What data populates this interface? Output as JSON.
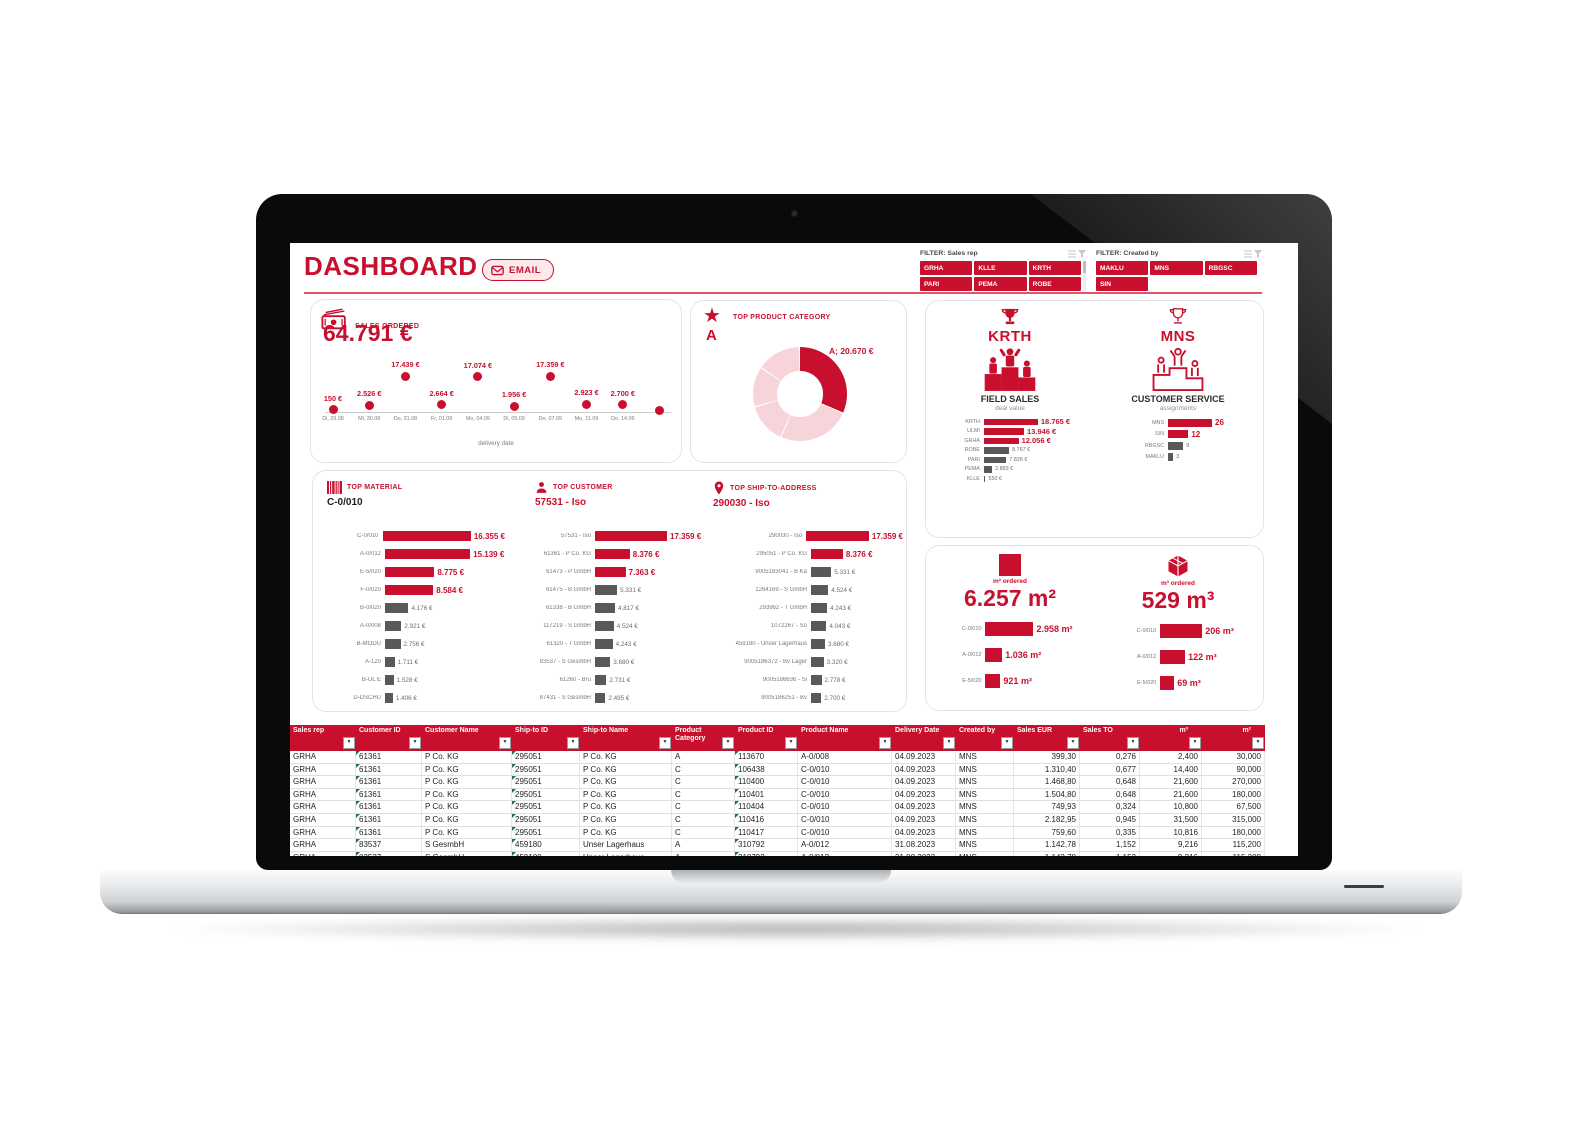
{
  "header": {
    "title": "DASHBOARD",
    "email_button": "EMAIL"
  },
  "filters": [
    {
      "label": "FILTER: Sales rep",
      "buttons": [
        "GRHA",
        "KLLE",
        "KRTH",
        "PARI",
        "PEMA",
        "ROBE"
      ]
    },
    {
      "label": "FILTER: Created by",
      "buttons": [
        "MAKLU",
        "MNS",
        "RBGSC",
        "SIN"
      ]
    }
  ],
  "colors": {
    "accent": "#C8102E",
    "pink_segment": "#F7D4DA",
    "gray_bar": "#595959",
    "header_rule": "#DE5468"
  },
  "kpis": {
    "sales_ordered": {
      "label": "SALES ORDERED",
      "value": "64.791 €"
    },
    "top_product_category": {
      "label": "TOP PRODUCT CATEGORY",
      "value": "A"
    },
    "field_sales": {
      "winner": "KRTH",
      "title": "FIELD SALES",
      "subtitle": "deal value"
    },
    "customer_service": {
      "winner": "MNS",
      "title": "CUSTOMER SERVICE",
      "subtitle": "assignments"
    },
    "top_material": {
      "label": "TOP MATERIAL",
      "value": "C-0/010"
    },
    "top_customer": {
      "label": "TOP CUSTOMER",
      "value": "57531 - Iso"
    },
    "top_shipto": {
      "label": "TOP SHIP-TO-ADDRESS",
      "value": "290030 - Iso"
    },
    "m2": {
      "label": "m² ordered",
      "value": "6.257 m²"
    },
    "m3": {
      "label": "m³ ordered",
      "value": "529 m³"
    }
  },
  "chart_data": [
    {
      "id": "sales_by_delivery_date",
      "type": "scatter",
      "xlabel": "delivery date",
      "categories": [
        "Di, 29.08",
        "Mi, 30.08",
        "Do, 31.08",
        "Fr, 01.09",
        "Mo, 04.09",
        "Di, 05.09",
        "Do, 07.09",
        "Mo, 11.09",
        "Do, 14.09",
        ""
      ],
      "values": [
        150,
        2526,
        17439,
        2664,
        17074,
        1956,
        17359,
        2923,
        2700,
        0
      ],
      "labels": [
        "150 €",
        "2.526 €",
        "17.439 €",
        "2.664 €",
        "17.074 €",
        "1.956 €",
        "17.359 €",
        "2.923 €",
        "2.700 €",
        ""
      ],
      "ylim": [
        0,
        18000
      ]
    },
    {
      "id": "top_product_category_donut",
      "type": "pie",
      "label": "A; 20.670 €",
      "total": 64791,
      "segments": [
        {
          "name": "A",
          "value": 20670,
          "highlight": true
        },
        {
          "name": "other-1",
          "value": 16208
        },
        {
          "name": "other-2",
          "value": 9003
        },
        {
          "name": "other-3",
          "value": 9003
        },
        {
          "name": "other-4",
          "value": 9907
        }
      ]
    },
    {
      "id": "field_sales_deal_value",
      "type": "bar",
      "red_count": 3,
      "categories": [
        "KRTH",
        "ULMI",
        "GRHA",
        "ROBE",
        "PARI",
        "PEMA",
        "KLLE"
      ],
      "values": [
        18765,
        13946,
        12056,
        8767,
        7826,
        2883,
        550
      ],
      "labels": [
        "18.765 €",
        "13.946 €",
        "12.056 €",
        "8.767 €",
        "7.826 €",
        "2.883 €",
        "550 €"
      ]
    },
    {
      "id": "customer_service_assignments",
      "type": "bar",
      "red_count": 2,
      "categories": [
        "MNS",
        "SIN",
        "RBGSC",
        "MAKLU"
      ],
      "values": [
        26,
        12,
        9,
        3
      ],
      "labels": [
        "26",
        "12",
        "9",
        "3"
      ]
    },
    {
      "id": "top_material_sales",
      "type": "bar",
      "red_count": 4,
      "categories": [
        "C-0/010",
        "A-0/012",
        "E-5/020",
        "F-0/020",
        "B-0/020",
        "A-0/008",
        "B-MODU",
        "A-120",
        "B-UL E",
        "D-DSCHU"
      ],
      "values": [
        16355,
        15139,
        8775,
        8584,
        4176,
        2921,
        2756,
        1711,
        1528,
        1406
      ],
      "labels": [
        "16.355 €",
        "15.139 €",
        "8.775 €",
        "8.584 €",
        "4.176 €",
        "2.921 €",
        "2.756 €",
        "1.711 €",
        "1.528 €",
        "1.406 €"
      ]
    },
    {
      "id": "top_customer_sales",
      "type": "bar",
      "red_count": 3,
      "categories": [
        "57531 - Iso",
        "61361 - P Co. KG",
        "61473 - P GmbH",
        "61475 - B GmbH",
        "61338 - B GmbH",
        "117219 - S GmbH",
        "61320 - T GmbH",
        "83537 - S GesmbH",
        "61260 - Bru",
        "87431 - S GesmbH"
      ],
      "values": [
        17359,
        8376,
        7363,
        5331,
        4817,
        4524,
        4243,
        3680,
        2731,
        2495
      ],
      "labels": [
        "17.359 €",
        "8.376 €",
        "7.363 €",
        "5.331 €",
        "4.817 €",
        "4.524 €",
        "4.243 €",
        "3.680 €",
        "2.731 €",
        "2.495 €"
      ]
    },
    {
      "id": "top_shipto_sales",
      "type": "bar",
      "red_count": 2,
      "categories": [
        "290030 - Iso",
        "295051 - P Co. KG",
        "9005183041 - B Ka",
        "1264169 - S GmbH",
        "293962 - T GmbH",
        "1072267 - So",
        "459180 - Unser Lagerhaus",
        "9005186372 - Bv Lager",
        "9005186636 - Si",
        "9005186251 - Bv"
      ],
      "values": [
        17359,
        8376,
        5331,
        4524,
        4243,
        4043,
        3680,
        3320,
        2778,
        2700
      ],
      "labels": [
        "17.359 €",
        "8.376 €",
        "5.331 €",
        "4.524 €",
        "4.243 €",
        "4.043 €",
        "3.680 €",
        "3.320 €",
        "2.778 €",
        "2.700 €"
      ]
    },
    {
      "id": "m2_by_material",
      "type": "bar",
      "red_count": 3,
      "categories": [
        "C-0/010",
        "A-0/012",
        "E-5/020"
      ],
      "values": [
        2958,
        1036,
        921
      ],
      "labels": [
        "2.958 m²",
        "1.036 m²",
        "921 m²"
      ]
    },
    {
      "id": "m3_by_material",
      "type": "bar",
      "red_count": 3,
      "categories": [
        "C-0/010",
        "A-0/012",
        "E-5/020"
      ],
      "values": [
        206,
        122,
        69
      ],
      "labels": [
        "206 m³",
        "122 m³",
        "69 m³"
      ]
    }
  ],
  "table": {
    "columns": [
      "Sales rep",
      "Customer ID",
      "Customer Name",
      "Ship-to ID",
      "Ship-to Name",
      "Product Category",
      "Product ID",
      "Product Name",
      "Delivery Date",
      "Created by",
      "Sales EUR",
      "Sales TO",
      "m³",
      "m²"
    ],
    "rows": [
      [
        "GRHA",
        "61361",
        "P Co. KG",
        "295051",
        "P Co. KG",
        "A",
        "113670",
        "A-0/008",
        "04.09.2023",
        "MNS",
        "399,30",
        "0,276",
        "2,400",
        "30,000"
      ],
      [
        "GRHA",
        "61361",
        "P Co. KG",
        "295051",
        "P Co. KG",
        "C",
        "106438",
        "C-0/010",
        "04.09.2023",
        "MNS",
        "1.310,40",
        "0,677",
        "14,400",
        "90,000"
      ],
      [
        "GRHA",
        "61361",
        "P Co. KG",
        "295051",
        "P Co. KG",
        "C",
        "110400",
        "C-0/010",
        "04.09.2023",
        "MNS",
        "1.468,80",
        "0,648",
        "21,600",
        "270,000"
      ],
      [
        "GRHA",
        "61361",
        "P Co. KG",
        "295051",
        "P Co. KG",
        "C",
        "110401",
        "C-0/010",
        "04.09.2023",
        "MNS",
        "1.504,80",
        "0,648",
        "21,600",
        "180,000"
      ],
      [
        "GRHA",
        "61361",
        "P Co. KG",
        "295051",
        "P Co. KG",
        "C",
        "110404",
        "C-0/010",
        "04.09.2023",
        "MNS",
        "749,93",
        "0,324",
        "10,800",
        "67,500"
      ],
      [
        "GRHA",
        "61361",
        "P Co. KG",
        "295051",
        "P Co. KG",
        "C",
        "110416",
        "C-0/010",
        "04.09.2023",
        "MNS",
        "2.182,95",
        "0,945",
        "31,500",
        "315,000"
      ],
      [
        "GRHA",
        "61361",
        "P Co. KG",
        "295051",
        "P Co. KG",
        "C",
        "110417",
        "C-0/010",
        "04.09.2023",
        "MNS",
        "759,60",
        "0,335",
        "10,816",
        "180,000"
      ],
      [
        "GRHA",
        "83537",
        "S GesmbH",
        "459180",
        "Unser Lagerhaus",
        "A",
        "310792",
        "A-0/012",
        "31.08.2023",
        "MNS",
        "1.142,78",
        "1,152",
        "9,216",
        "115,200"
      ]
    ],
    "has_partial_last_row": true
  }
}
